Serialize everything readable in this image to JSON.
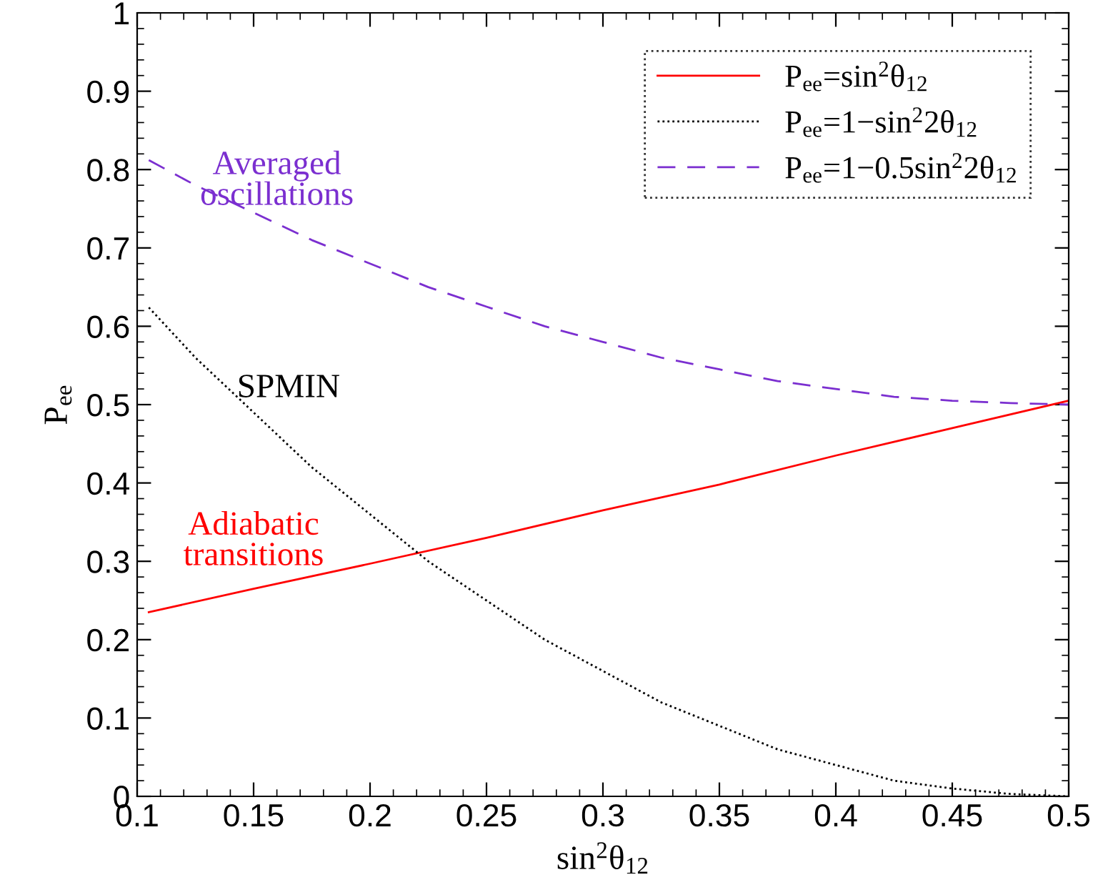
{
  "chart_data": {
    "type": "line",
    "xlabel": "sin$^{2}$θ$_{12}$",
    "ylabel": "P$_{ee}$",
    "xlim": [
      0.1,
      0.5
    ],
    "xticks": [
      0.1,
      0.15,
      0.2,
      0.25,
      0.3,
      0.35,
      0.4,
      0.45,
      0.5
    ],
    "ylim": [
      0,
      1
    ],
    "yticks": [
      0,
      0.1,
      0.2,
      0.3,
      0.4,
      0.5,
      0.6,
      0.7,
      0.8,
      0.9,
      1
    ],
    "grid": false,
    "legend": "top right",
    "series": [
      {
        "name": "P$_{ee}$=sin$^{2}$θ$_{12}$",
        "color": "#ff0000",
        "line_style": "solid",
        "x": [
          0.105,
          0.15,
          0.2,
          0.25,
          0.3,
          0.35,
          0.4,
          0.45,
          0.5
        ],
        "values": [
          0.235,
          0.265,
          0.297,
          0.33,
          0.365,
          0.398,
          0.435,
          0.47,
          0.505
        ]
      },
      {
        "name": "P$_{ee}$=1−sin$^{2}$2θ$_{12}$",
        "color": "#000000",
        "line_style": "dotted",
        "x": [
          0.105,
          0.125,
          0.15,
          0.175,
          0.2,
          0.225,
          0.25,
          0.275,
          0.3,
          0.325,
          0.35,
          0.375,
          0.4,
          0.425,
          0.45,
          0.475,
          0.5
        ],
        "values": [
          0.624,
          0.56,
          0.49,
          0.42,
          0.36,
          0.3,
          0.25,
          0.2,
          0.16,
          0.12,
          0.09,
          0.06,
          0.04,
          0.02,
          0.01,
          0.003,
          0
        ]
      },
      {
        "name": "P$_{ee}$=1−0.5sin$^{2}$2θ$_{12}$",
        "color": "#7b2fd0",
        "line_style": "dashed",
        "x": [
          0.105,
          0.125,
          0.15,
          0.175,
          0.2,
          0.225,
          0.25,
          0.275,
          0.3,
          0.325,
          0.35,
          0.375,
          0.4,
          0.425,
          0.45,
          0.475,
          0.5
        ],
        "values": [
          0.812,
          0.78,
          0.745,
          0.71,
          0.68,
          0.65,
          0.625,
          0.6,
          0.58,
          0.56,
          0.545,
          0.53,
          0.52,
          0.51,
          0.505,
          0.502,
          0.5
        ]
      }
    ],
    "annotations": [
      "Adiabatic\ntransitions",
      "SPMIN",
      "Averaged\noscillations"
    ]
  }
}
